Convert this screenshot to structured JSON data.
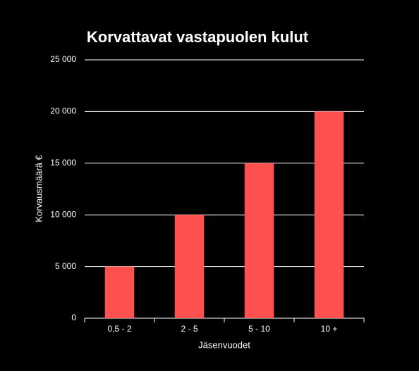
{
  "chart_data": {
    "type": "bar",
    "title": "Korvattavat vastapuolen kulut",
    "x_label": "Jäsenvuodet",
    "y_label": "Korvausmäärä €",
    "categories": [
      "0,5 - 2",
      "2 - 5",
      "5 - 10",
      "10 +"
    ],
    "values": [
      5000,
      10000,
      15000,
      20000
    ],
    "color": "#ff5050",
    "ylim": [
      0,
      25000
    ],
    "yticks": [
      0,
      {
        "value": 5000,
        "label": "5 000"
      },
      {
        "value": 10000,
        "label": "10 000"
      },
      {
        "value": 15000,
        "label": "15 000"
      },
      {
        "value": 20000,
        "label": "20 000"
      },
      {
        "value": 25000,
        "label": "25 000"
      }
    ],
    "grid": true
  }
}
